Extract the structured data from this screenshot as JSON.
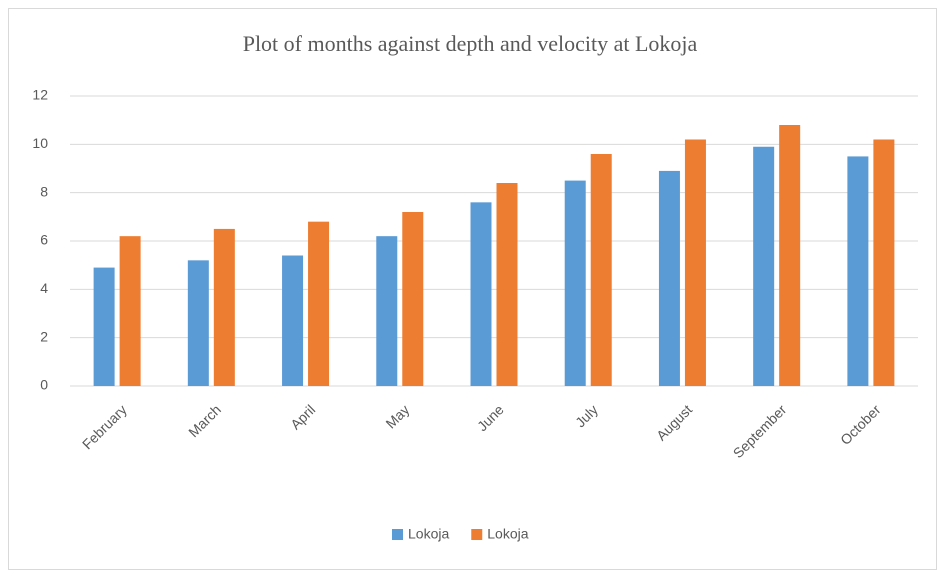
{
  "chart_data": {
    "type": "bar",
    "title": "Plot of months against depth and velocity  at Lokoja",
    "categories": [
      "February",
      "March",
      "April",
      "May",
      "June",
      "July",
      "August",
      "September",
      "October"
    ],
    "series": [
      {
        "name": "Lokoja",
        "color": "#5b9bd5",
        "values": [
          4.9,
          5.2,
          5.4,
          6.2,
          7.6,
          8.5,
          8.9,
          9.9,
          9.5
        ]
      },
      {
        "name": "Lokoja",
        "color": "#ed7d31",
        "values": [
          6.2,
          6.5,
          6.8,
          7.2,
          8.4,
          9.6,
          10.2,
          10.8,
          10.2
        ]
      }
    ],
    "ylim": [
      0,
      12
    ],
    "yticks": [
      0,
      2,
      4,
      6,
      8,
      10,
      12
    ],
    "grid": true,
    "legend": "bottom"
  }
}
